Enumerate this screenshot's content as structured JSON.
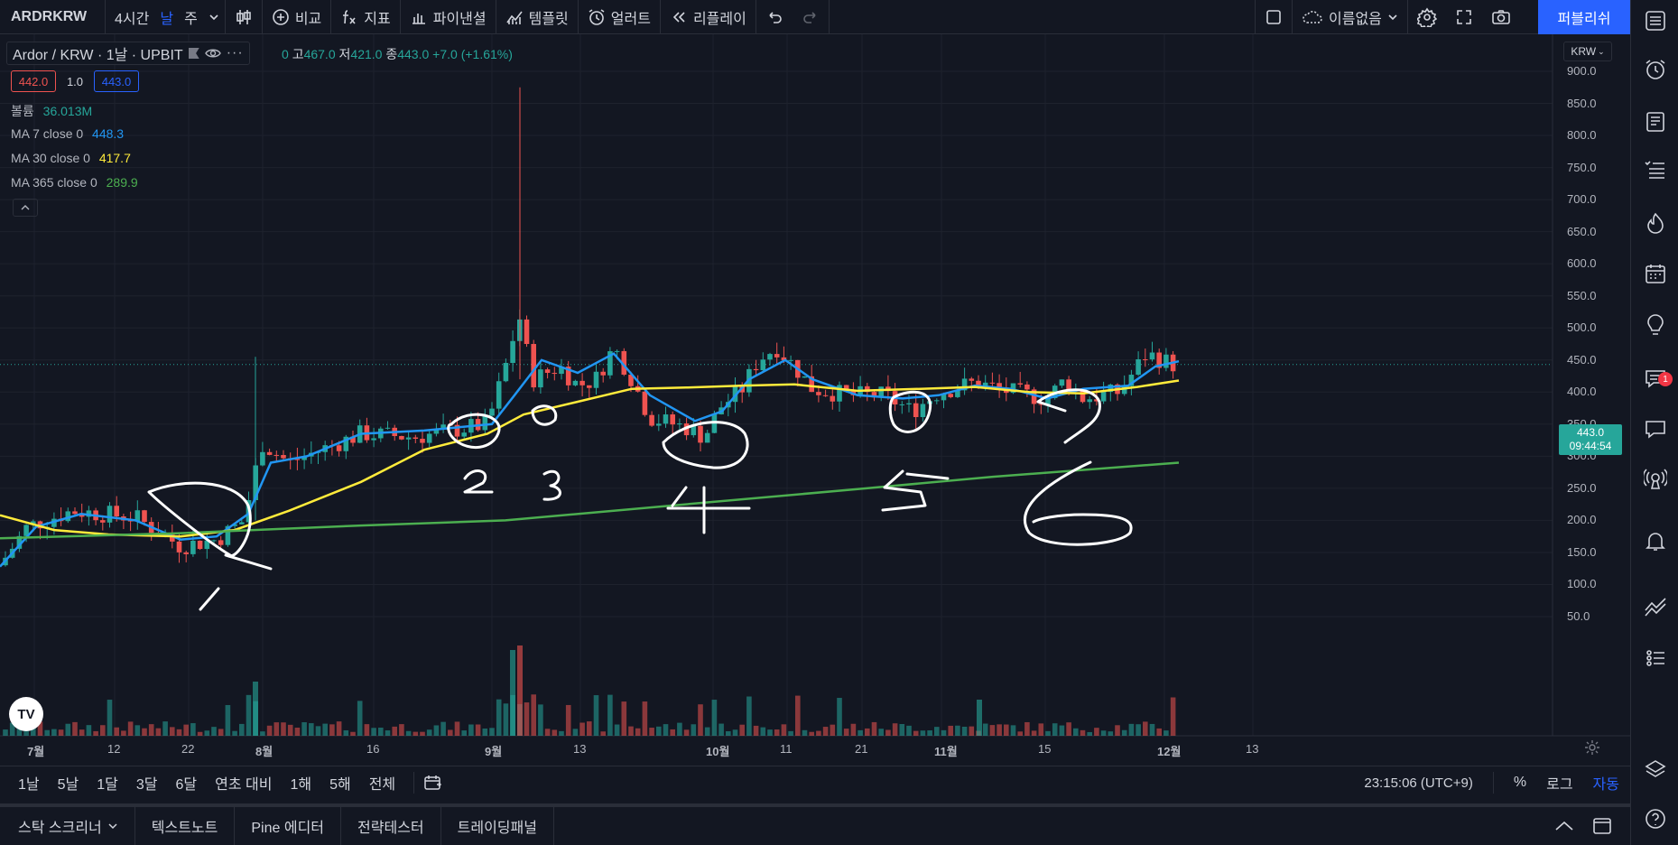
{
  "toolbar": {
    "symbol": "ARDRKRW",
    "intervals": [
      "4시간",
      "날",
      "주"
    ],
    "compare_label": "비교",
    "indicators_label": "지표",
    "financials_label": "파이낸셜",
    "templates_label": "템플릿",
    "alert_label": "얼러트",
    "replay_label": "리플레이",
    "layout_name": "이름없음",
    "publish_label": "퍼블리쉬"
  },
  "legend": {
    "title": "Ardor / KRW · 1날 · UPBIT",
    "ohlc_prefix": "0",
    "high_label": "고",
    "high": "467.0",
    "low_label": "저",
    "low": "421.0",
    "close_label": "종",
    "close": "443.0",
    "change": "+7.0 (+1.61%)",
    "bid": "442.0",
    "spread": "1.0",
    "ask": "443.0",
    "volume_label": "볼륨",
    "volume_value": "36.013M",
    "ma7_label": "MA 7 close 0",
    "ma7_value": "448.3",
    "ma30_label": "MA 30 close 0",
    "ma30_value": "417.7",
    "ma365_label": "MA 365 close 0",
    "ma365_value": "289.9"
  },
  "price_axis": {
    "currency": "KRW",
    "ticks": [
      "900.0",
      "850.0",
      "800.0",
      "750.0",
      "700.0",
      "650.0",
      "600.0",
      "550.0",
      "500.0",
      "450.0",
      "400.0",
      "350.0",
      "300.0",
      "250.0",
      "200.0",
      "150.0",
      "100.0",
      "50.0"
    ],
    "current_price": "443.0",
    "countdown": "09:44:54"
  },
  "time_axis": {
    "ticks": [
      "7월",
      "12",
      "22",
      "8월",
      "16",
      "9월",
      "13",
      "10월",
      "11",
      "21",
      "11월",
      "15",
      "12월",
      "13"
    ]
  },
  "annotations": [
    "1",
    "2",
    "3",
    "4",
    "5",
    "6"
  ],
  "range_bar": {
    "ranges": [
      "1날",
      "5날",
      "1달",
      "3달",
      "6달",
      "연초 대비",
      "1해",
      "5해",
      "전체"
    ],
    "clock": "23:15:06 (UTC+9)",
    "percent": "%",
    "log": "로그",
    "auto": "자동"
  },
  "bottom_tabs": [
    "스탁 스크리너",
    "텍스트노트",
    "Pine 에디터",
    "전략테스터",
    "트레이딩패널"
  ],
  "colors": {
    "up": "#26a69a",
    "down": "#ef5350",
    "ma7": "#2196f3",
    "ma30": "#ffeb3b",
    "ma365": "#4caf50",
    "accent": "#2962ff"
  },
  "notification_count": "1"
}
